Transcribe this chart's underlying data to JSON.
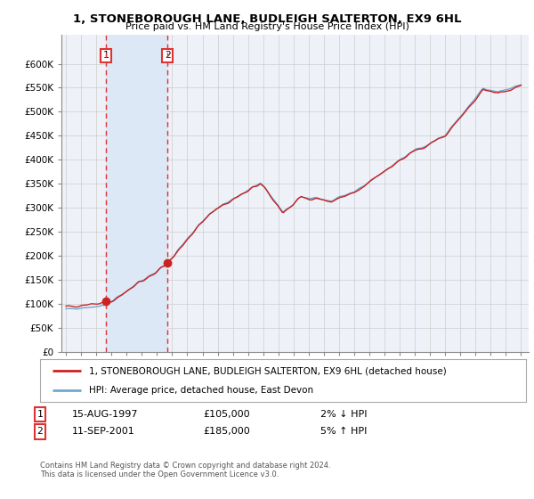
{
  "title": "1, STONEBOROUGH LANE, BUDLEIGH SALTERTON, EX9 6HL",
  "subtitle": "Price paid vs. HM Land Registry's House Price Index (HPI)",
  "legend_line1": "1, STONEBOROUGH LANE, BUDLEIGH SALTERTON, EX9 6HL (detached house)",
  "legend_line2": "HPI: Average price, detached house, East Devon",
  "purchase1_date": "15-AUG-1997",
  "purchase1_price": 105000,
  "purchase1_note": "2% ↓ HPI",
  "purchase2_date": "11-SEP-2001",
  "purchase2_price": 185000,
  "purchase2_note": "5% ↑ HPI",
  "footnote": "Contains HM Land Registry data © Crown copyright and database right 2024.\nThis data is licensed under the Open Government Licence v3.0.",
  "hpi_color": "#6fa8d0",
  "price_color": "#cc2222",
  "vline_color": "#dd3333",
  "shade_color": "#dce8f5",
  "background_plot": "#eef2f8",
  "grid_color": "#cccccc",
  "ylim": [
    0,
    660000
  ],
  "ytick_vals": [
    0,
    50000,
    100000,
    150000,
    200000,
    250000,
    300000,
    350000,
    400000,
    450000,
    500000,
    550000,
    600000
  ],
  "ytick_labels": [
    "£0",
    "£50K",
    "£100K",
    "£150K",
    "£200K",
    "£250K",
    "£300K",
    "£350K",
    "£400K",
    "£450K",
    "£500K",
    "£550K",
    "£600K"
  ],
  "purchase1_year": 1997.62,
  "purchase2_year": 2001.7,
  "xlim_start": 1994.7,
  "xlim_end": 2025.5
}
